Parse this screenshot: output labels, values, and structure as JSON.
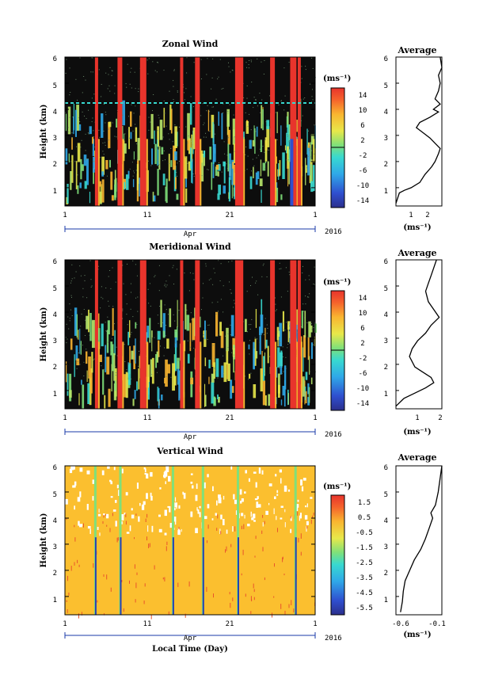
{
  "chart_data": [
    {
      "type": "heatmap",
      "title": "Zonal Wind",
      "ylabel": "Height (km)",
      "yticks": [
        "1",
        "2",
        "3",
        "4",
        "5",
        "6"
      ],
      "xticks": [
        "1",
        "11",
        "21",
        "1"
      ],
      "month": "Apr",
      "year": "2016",
      "ylim": [
        0.3,
        6
      ],
      "colorbar": {
        "unit": "(ms⁻¹)",
        "ticks": [
          "14",
          "10",
          "6",
          "2",
          "-2",
          "-6",
          "-10",
          "-14"
        ]
      },
      "average": {
        "title": "Average",
        "xlabel": "(ms⁻¹)",
        "xticks": [
          "1",
          "2"
        ],
        "xlim": [
          0.3,
          3.0
        ],
        "profile": [
          [
            0.3,
            0.4
          ],
          [
            0.5,
            0.8
          ],
          [
            0.8,
            0.9
          ],
          [
            1.2,
            1.0
          ],
          [
            1.7,
            1.2
          ],
          [
            2.0,
            1.5
          ],
          [
            2.4,
            1.8
          ],
          [
            2.6,
            2.0
          ],
          [
            2.8,
            2.3
          ],
          [
            2.9,
            2.5
          ],
          [
            2.6,
            2.7
          ],
          [
            2.3,
            2.9
          ],
          [
            1.9,
            3.1
          ],
          [
            1.5,
            3.3
          ],
          [
            1.7,
            3.5
          ],
          [
            2.3,
            3.7
          ],
          [
            2.8,
            3.9
          ],
          [
            2.5,
            4.0
          ],
          [
            2.9,
            4.2
          ],
          [
            2.6,
            4.4
          ],
          [
            2.8,
            4.7
          ],
          [
            2.9,
            5.0
          ],
          [
            2.8,
            5.3
          ],
          [
            3.0,
            5.6
          ],
          [
            2.9,
            6.0
          ]
        ]
      }
    },
    {
      "type": "heatmap",
      "title": "Meridional Wind",
      "ylabel": "Height (km)",
      "yticks": [
        "1",
        "2",
        "3",
        "4",
        "5",
        "6"
      ],
      "xticks": [
        "1",
        "11",
        "21",
        "1"
      ],
      "month": "Apr",
      "year": "2016",
      "ylim": [
        0.3,
        6
      ],
      "colorbar": {
        "unit": "(ms⁻¹)",
        "ticks": [
          "14",
          "10",
          "6",
          "2",
          "-2",
          "-6",
          "-10",
          "-14"
        ]
      },
      "average": {
        "title": "Average",
        "xlabel": "(ms⁻¹)",
        "xticks": [
          "1",
          "2"
        ],
        "xlim": [
          0.3,
          2.0
        ],
        "profile": [
          [
            0.3,
            0.4
          ],
          [
            0.6,
            0.7
          ],
          [
            1.0,
            0.9
          ],
          [
            1.4,
            1.1
          ],
          [
            1.7,
            1.3
          ],
          [
            1.6,
            1.5
          ],
          [
            1.3,
            1.7
          ],
          [
            1.0,
            1.9
          ],
          [
            0.9,
            2.1
          ],
          [
            0.8,
            2.3
          ],
          [
            0.9,
            2.6
          ],
          [
            1.1,
            2.9
          ],
          [
            1.4,
            3.2
          ],
          [
            1.6,
            3.5
          ],
          [
            1.9,
            3.8
          ],
          [
            1.7,
            4.1
          ],
          [
            1.5,
            4.4
          ],
          [
            1.4,
            4.8
          ],
          [
            1.5,
            5.1
          ],
          [
            1.6,
            5.4
          ],
          [
            1.7,
            5.7
          ],
          [
            1.8,
            6.0
          ]
        ]
      }
    },
    {
      "type": "heatmap",
      "title": "Vertical Wind",
      "ylabel": "Height (km)",
      "xlabel": "Local Time (Day)",
      "yticks": [
        "1",
        "2",
        "3",
        "4",
        "5",
        "6"
      ],
      "xticks": [
        "1",
        "11",
        "21",
        "1"
      ],
      "month": "Apr",
      "year": "2016",
      "ylim": [
        0.3,
        6
      ],
      "colorbar": {
        "unit": "(ms⁻¹)",
        "ticks": [
          "1.5",
          "0.5",
          "-0.5",
          "-1.5",
          "-2.5",
          "-3.5",
          "-4.5",
          "-5.5"
        ]
      },
      "average": {
        "title": "Average",
        "xlabel": "(ms⁻¹)",
        "xticks": [
          "-0.6",
          "-0.1"
        ],
        "xlim": [
          -0.6,
          -0.1
        ],
        "profile": [
          [
            -0.55,
            0.4
          ],
          [
            -0.53,
            0.8
          ],
          [
            -0.52,
            1.2
          ],
          [
            -0.5,
            1.6
          ],
          [
            -0.45,
            2.0
          ],
          [
            -0.4,
            2.4
          ],
          [
            -0.33,
            2.8
          ],
          [
            -0.28,
            3.2
          ],
          [
            -0.24,
            3.6
          ],
          [
            -0.2,
            4.0
          ],
          [
            -0.22,
            4.2
          ],
          [
            -0.17,
            4.5
          ],
          [
            -0.14,
            5.0
          ],
          [
            -0.12,
            5.5
          ],
          [
            -0.1,
            6.0
          ]
        ]
      }
    }
  ]
}
